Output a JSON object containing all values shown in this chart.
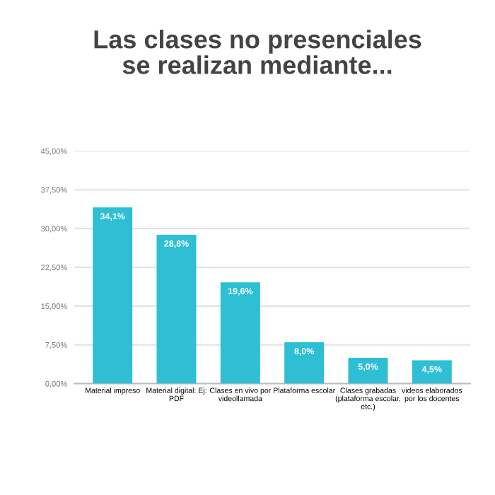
{
  "chart_data": {
    "type": "bar",
    "title": "Las clases no presenciales\nse realizan mediante...",
    "categories": [
      "Material impreso",
      "Material digital: Ej:\nPDF",
      "Clases en vivo por\nvideollamada",
      "Plataforma escolar",
      "Clases grabadas\n(plataforma escolar,\netc.)",
      "videos elaborados\npor los docentes"
    ],
    "values": [
      34.1,
      28.8,
      19.6,
      8.0,
      5.0,
      4.5
    ],
    "value_labels": [
      "34,1%",
      "28,8%",
      "19,6%",
      "8,0%",
      "5,0%",
      "4,5%"
    ],
    "color": "#2ebfd4",
    "ylim": [
      0,
      45
    ],
    "yticks": [
      {
        "value": 0,
        "label": "0,00%"
      },
      {
        "value": 7.5,
        "label": "7,50%"
      },
      {
        "value": 15,
        "label": "15,00%"
      },
      {
        "value": 22.5,
        "label": "22,50%"
      },
      {
        "value": 30,
        "label": "30,00%"
      },
      {
        "value": 37.5,
        "label": "37,50%"
      },
      {
        "value": 45,
        "label": "45,00%"
      }
    ],
    "grid": "y",
    "legend": false
  }
}
